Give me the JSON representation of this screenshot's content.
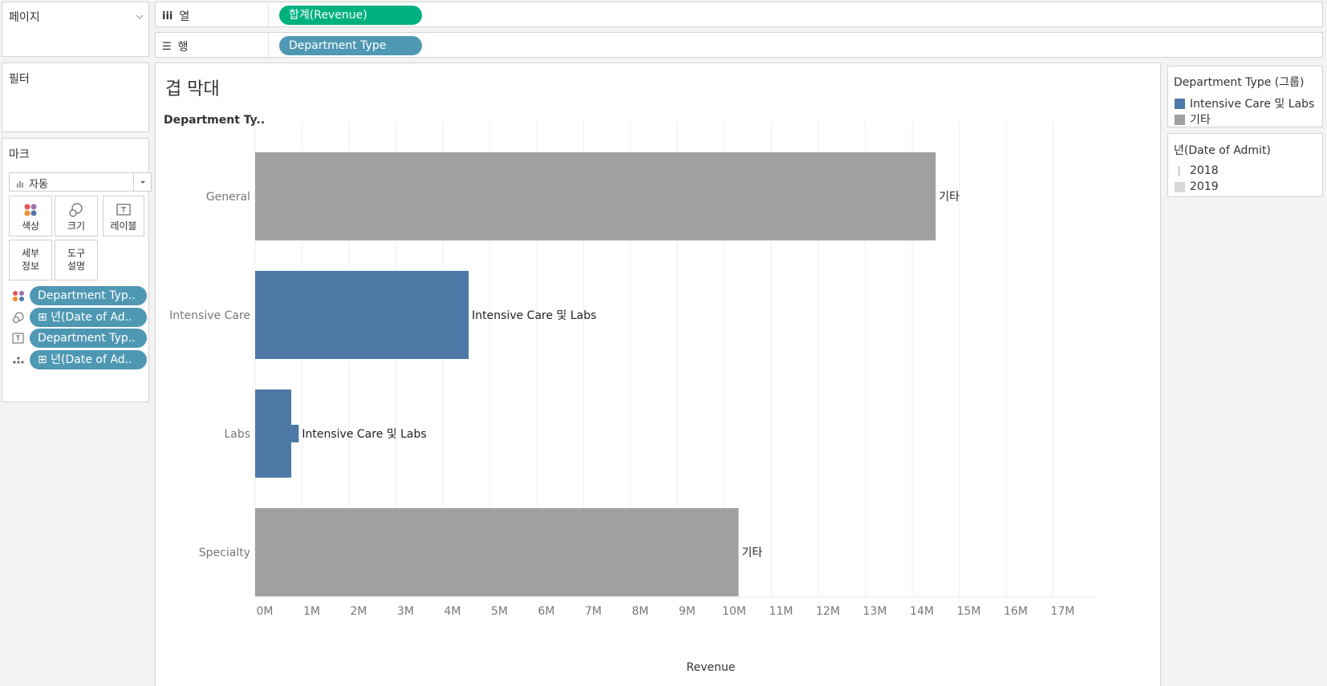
{
  "pages_panel": {
    "title": "페이지"
  },
  "filters_panel": {
    "title": "필터"
  },
  "marks_panel": {
    "title": "마크",
    "mark_type": "자동",
    "buttons": {
      "color": "색상",
      "size": "크기",
      "label": "레이블",
      "detail_l1": "세부",
      "detail_l2": "정보",
      "tooltip_l1": "도구",
      "tooltip_l2": "설명"
    },
    "cards": [
      "Department Typ..",
      "⊞ 년(Date of Ad..",
      "Department Typ..",
      "⊞ 년(Date of Ad.."
    ]
  },
  "columns_shelf": {
    "icon": "iii",
    "label": "열",
    "pill": "합계(Revenue)"
  },
  "rows_shelf": {
    "icon": "☰",
    "label": "행",
    "pill": "Department Type"
  },
  "sheet": {
    "title": "겹 막대",
    "row_header": "Department Ty.."
  },
  "legend_color": {
    "title": "Department Type (그룹)",
    "items": [
      {
        "label": "Intensive Care 및 Labs",
        "color": "#4e79a7"
      },
      {
        "label": "기타",
        "color": "#a0a0a0"
      }
    ]
  },
  "legend_size": {
    "title": "년(Date of Admit)",
    "items": [
      {
        "label": "2018"
      },
      {
        "label": "2019"
      }
    ]
  },
  "chart_data": {
    "type": "bar",
    "orientation": "horizontal",
    "xlabel": "Revenue",
    "ylabel": "Department Ty..",
    "xlim": [
      0,
      18
    ],
    "ticks": [
      "0M",
      "1M",
      "2M",
      "3M",
      "4M",
      "5M",
      "6M",
      "7M",
      "8M",
      "9M",
      "10M",
      "11M",
      "12M",
      "13M",
      "14M",
      "15M",
      "16M",
      "17M"
    ],
    "grid": true,
    "categories": [
      "General",
      "Intensive Care",
      "Labs",
      "Specialty"
    ],
    "bars": [
      {
        "category": "General",
        "value": 14.5,
        "value_2018": 14.5,
        "group": "기타",
        "label": "기타",
        "color": "#a0a0a0"
      },
      {
        "category": "Intensive Care",
        "value": 4.55,
        "value_2018": 4.55,
        "group": "Intensive Care 및 Labs",
        "label": "Intensive Care 및 Labs",
        "color": "#4e79a7"
      },
      {
        "category": "Labs",
        "value": 0.93,
        "value_2018": 0.77,
        "group": "Intensive Care 및 Labs",
        "label": "Intensive Care 및 Labs",
        "color": "#4e79a7"
      },
      {
        "category": "Specialty",
        "value": 10.3,
        "value_2018": 10.3,
        "group": "기타",
        "label": "기타",
        "color": "#a0a0a0"
      }
    ]
  }
}
